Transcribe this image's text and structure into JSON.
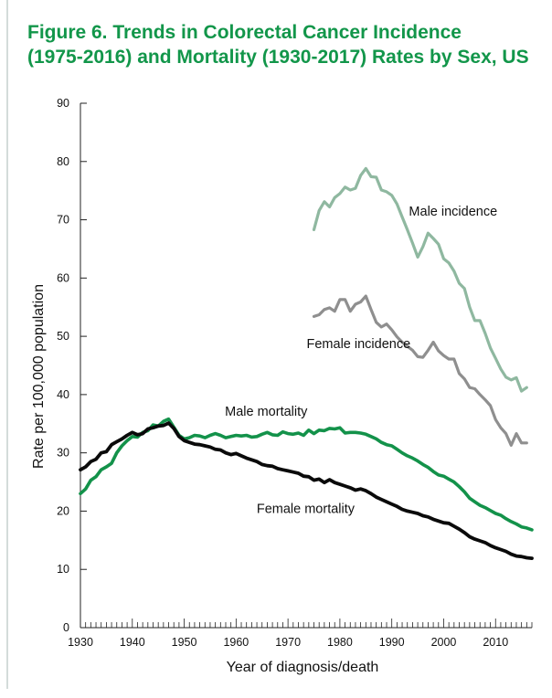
{
  "title_lines": [
    "Figure 6. Trends in Colorectal Cancer Incidence",
    "(1975-2016) and Mortality (1930-2017) Rates by Sex, US"
  ],
  "colors": {
    "title": "#12964a",
    "male_incidence": "#8fb8a0",
    "female_incidence": "#8f8f8f",
    "male_mortality": "#13924a",
    "female_mortality": "#0a0a0a"
  },
  "chart_data": {
    "type": "line",
    "title": "Figure 6. Trends in Colorectal Cancer Incidence (1975-2016) and Mortality (1930-2017) Rates by Sex, US",
    "xlabel": "Year of diagnosis/death",
    "ylabel": "Rate per 100,000 population",
    "xlim": [
      1930,
      2017
    ],
    "ylim": [
      0,
      90
    ],
    "xticks": [
      1930,
      1940,
      1950,
      1960,
      1970,
      1980,
      1990,
      2000,
      2010
    ],
    "yticks": [
      0,
      10,
      20,
      30,
      40,
      50,
      60,
      70,
      80,
      90
    ],
    "grid": false,
    "legend": "inline labels",
    "series": [
      {
        "name": "Male incidence",
        "color": "#8fb8a0",
        "x": [
          1975,
          1976,
          1977,
          1978,
          1979,
          1980,
          1981,
          1982,
          1983,
          1984,
          1985,
          1986,
          1987,
          1988,
          1989,
          1990,
          1991,
          1992,
          1993,
          1994,
          1995,
          1996,
          1997,
          1998,
          1999,
          2000,
          2001,
          2002,
          2003,
          2004,
          2005,
          2006,
          2007,
          2008,
          2009,
          2010,
          2011,
          2012,
          2013,
          2014,
          2015,
          2016
        ],
        "y": [
          68.3,
          71.6,
          73.1,
          72.2,
          73.8,
          74.5,
          75.6,
          75.1,
          75.4,
          77.6,
          78.8,
          77.4,
          77.3,
          75.1,
          74.8,
          74.2,
          72.7,
          70.5,
          68.3,
          66.0,
          63.6,
          65.4,
          67.7,
          66.8,
          65.8,
          63.3,
          62.6,
          61.2,
          59.1,
          58.2,
          55.0,
          52.7,
          52.7,
          50.5,
          48.0,
          46.2,
          44.4,
          43.0,
          42.5,
          42.9,
          40.6,
          41.2
        ]
      },
      {
        "name": "Female incidence",
        "color": "#8f8f8f",
        "x": [
          1975,
          1976,
          1977,
          1978,
          1979,
          1980,
          1981,
          1982,
          1983,
          1984,
          1985,
          1986,
          1987,
          1988,
          1989,
          1990,
          1991,
          1992,
          1993,
          1994,
          1995,
          1996,
          1997,
          1998,
          1999,
          2000,
          2001,
          2002,
          2003,
          2004,
          2005,
          2006,
          2007,
          2008,
          2009,
          2010,
          2011,
          2012,
          2013,
          2014,
          2015,
          2016
        ],
        "y": [
          53.4,
          53.7,
          54.6,
          54.9,
          54.3,
          56.3,
          56.3,
          54.3,
          55.5,
          55.9,
          56.9,
          54.6,
          52.4,
          51.6,
          52.1,
          51.1,
          49.9,
          49.0,
          48.3,
          47.6,
          46.5,
          46.4,
          47.6,
          49.0,
          47.5,
          46.7,
          46.1,
          46.1,
          43.6,
          42.7,
          41.2,
          41.0,
          40.0,
          39.1,
          38.1,
          35.7,
          34.3,
          33.3,
          31.3,
          33.3,
          31.7,
          31.7
        ]
      },
      {
        "name": "Male mortality",
        "color": "#13924a",
        "x": [
          1930,
          1931,
          1932,
          1933,
          1934,
          1935,
          1936,
          1937,
          1938,
          1939,
          1940,
          1941,
          1942,
          1943,
          1944,
          1945,
          1946,
          1947,
          1948,
          1949,
          1950,
          1951,
          1952,
          1953,
          1954,
          1955,
          1956,
          1957,
          1958,
          1959,
          1960,
          1961,
          1962,
          1963,
          1964,
          1965,
          1966,
          1967,
          1968,
          1969,
          1970,
          1971,
          1972,
          1973,
          1974,
          1975,
          1976,
          1977,
          1978,
          1979,
          1980,
          1981,
          1982,
          1983,
          1984,
          1985,
          1986,
          1987,
          1988,
          1989,
          1990,
          1991,
          1992,
          1993,
          1994,
          1995,
          1996,
          1997,
          1998,
          1999,
          2000,
          2001,
          2002,
          2003,
          2004,
          2005,
          2006,
          2007,
          2008,
          2009,
          2010,
          2011,
          2012,
          2013,
          2014,
          2015,
          2016,
          2017
        ],
        "y": [
          23.0,
          23.8,
          25.3,
          25.9,
          27.1,
          27.6,
          28.2,
          30.0,
          31.2,
          32.1,
          32.8,
          32.7,
          33.5,
          33.8,
          34.8,
          34.6,
          35.4,
          35.8,
          34.4,
          33.0,
          32.4,
          32.6,
          33.0,
          32.9,
          32.6,
          33.0,
          33.3,
          33.0,
          32.6,
          32.8,
          33.0,
          32.9,
          33.0,
          32.7,
          32.8,
          33.2,
          33.5,
          33.1,
          33.0,
          33.6,
          33.3,
          33.2,
          33.4,
          33.0,
          33.9,
          33.3,
          33.9,
          33.8,
          34.2,
          34.1,
          34.3,
          33.4,
          33.5,
          33.5,
          33.4,
          33.2,
          32.8,
          32.4,
          31.8,
          31.4,
          31.2,
          30.6,
          30.0,
          29.5,
          29.1,
          28.6,
          28.0,
          27.5,
          26.8,
          26.2,
          26.0,
          25.5,
          25.0,
          24.2,
          23.3,
          22.2,
          21.6,
          21.0,
          20.6,
          20.1,
          19.6,
          19.3,
          18.7,
          18.2,
          17.8,
          17.3,
          17.1,
          16.8
        ]
      },
      {
        "name": "Female mortality",
        "color": "#0a0a0a",
        "x": [
          1930,
          1931,
          1932,
          1933,
          1934,
          1935,
          1936,
          1937,
          1938,
          1939,
          1940,
          1941,
          1942,
          1943,
          1944,
          1945,
          1946,
          1947,
          1948,
          1949,
          1950,
          1951,
          1952,
          1953,
          1954,
          1955,
          1956,
          1957,
          1958,
          1959,
          1960,
          1961,
          1962,
          1963,
          1964,
          1965,
          1966,
          1967,
          1968,
          1969,
          1970,
          1971,
          1972,
          1973,
          1974,
          1975,
          1976,
          1977,
          1978,
          1979,
          1980,
          1981,
          1982,
          1983,
          1984,
          1985,
          1986,
          1987,
          1988,
          1989,
          1990,
          1991,
          1992,
          1993,
          1994,
          1995,
          1996,
          1997,
          1998,
          1999,
          2000,
          2001,
          2002,
          2003,
          2004,
          2005,
          2006,
          2007,
          2008,
          2009,
          2010,
          2011,
          2012,
          2013,
          2014,
          2015,
          2016,
          2017
        ],
        "y": [
          27.1,
          27.6,
          28.5,
          28.9,
          30.0,
          30.2,
          31.4,
          31.9,
          32.4,
          33.0,
          33.5,
          33.1,
          33.3,
          34.1,
          34.3,
          34.6,
          34.7,
          35.1,
          34.2,
          32.8,
          32.1,
          31.8,
          31.5,
          31.4,
          31.2,
          31.0,
          30.6,
          30.5,
          30.0,
          29.7,
          29.9,
          29.5,
          29.1,
          28.8,
          28.5,
          28.0,
          27.8,
          27.7,
          27.3,
          27.1,
          26.9,
          26.7,
          26.5,
          26.0,
          25.9,
          25.3,
          25.5,
          24.9,
          25.4,
          24.9,
          24.6,
          24.3,
          24.0,
          23.6,
          23.8,
          23.5,
          23.0,
          22.4,
          22.0,
          21.6,
          21.2,
          20.8,
          20.3,
          20.0,
          19.8,
          19.6,
          19.2,
          19.0,
          18.6,
          18.3,
          18.0,
          17.9,
          17.4,
          16.9,
          16.3,
          15.6,
          15.2,
          14.9,
          14.6,
          14.1,
          13.7,
          13.4,
          13.1,
          12.6,
          12.3,
          12.2,
          12.0,
          11.9
        ]
      }
    ]
  }
}
